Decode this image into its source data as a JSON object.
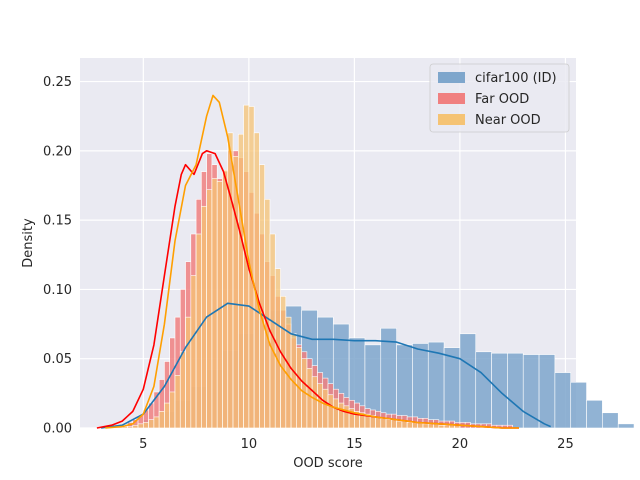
{
  "chart_data": {
    "type": "histogram-kde",
    "xlabel": "OOD score",
    "ylabel": "Density",
    "xlim": [
      2.0,
      25.5
    ],
    "ylim": [
      0,
      0.267
    ],
    "xticks": [
      5,
      10,
      15,
      20,
      25
    ],
    "yticks": [
      0.0,
      0.05,
      0.1,
      0.15,
      0.2,
      0.25
    ],
    "ytick_labels": [
      "0.00",
      "0.05",
      "0.10",
      "0.15",
      "0.20",
      "0.25"
    ],
    "grid": true,
    "legend_position": "top-right",
    "series": [
      {
        "name": "cifar100 (ID)",
        "color": "#1f77b4",
        "bar_color": "#7ea6cc",
        "bin_start": 3.5,
        "bin_width": 0.75,
        "hist": [
          0.001,
          0.003,
          0.006,
          0.012,
          0.02,
          0.03,
          0.042,
          0.056,
          0.068,
          0.078,
          0.085,
          0.088,
          0.085,
          0.08,
          0.075,
          0.065,
          0.06,
          0.072,
          0.06,
          0.061,
          0.062,
          0.058,
          0.068,
          0.055,
          0.054,
          0.054,
          0.053,
          0.053,
          0.04,
          0.033,
          0.02,
          0.011,
          0.003
        ],
        "kde_x": [
          3.0,
          4.0,
          5.0,
          6.0,
          7.0,
          8.0,
          9.0,
          10.0,
          11.0,
          12.0,
          13.0,
          14.0,
          15.0,
          16.0,
          17.0,
          18.0,
          19.0,
          20.0,
          21.0,
          22.0,
          23.0,
          24.0,
          24.3
        ],
        "kde_y": [
          0.0,
          0.002,
          0.01,
          0.03,
          0.058,
          0.08,
          0.09,
          0.088,
          0.078,
          0.068,
          0.064,
          0.064,
          0.063,
          0.063,
          0.062,
          0.057,
          0.054,
          0.05,
          0.04,
          0.025,
          0.012,
          0.003,
          0.001
        ]
      },
      {
        "name": "Far OOD",
        "color": "#ff0000",
        "bar_color": "#f08080",
        "bin_start": 3.5,
        "bin_width": 0.25,
        "hist": [
          0.001,
          0.002,
          0.002,
          0.004,
          0.006,
          0.009,
          0.013,
          0.018,
          0.026,
          0.035,
          0.048,
          0.065,
          0.08,
          0.1,
          0.12,
          0.14,
          0.165,
          0.185,
          0.198,
          0.19,
          0.18,
          0.185,
          0.2,
          0.2,
          0.195,
          0.185,
          0.17,
          0.155,
          0.14,
          0.12,
          0.11,
          0.095,
          0.085,
          0.075,
          0.065,
          0.06,
          0.055,
          0.05,
          0.045,
          0.04,
          0.036,
          0.032,
          0.028,
          0.025,
          0.022,
          0.02,
          0.018,
          0.016,
          0.014,
          0.013,
          0.012,
          0.011,
          0.01,
          0.01,
          0.009,
          0.009,
          0.008,
          0.008,
          0.007,
          0.007,
          0.006,
          0.006,
          0.005,
          0.005,
          0.005,
          0.004,
          0.004,
          0.004,
          0.003,
          0.003,
          0.003,
          0.003,
          0.002,
          0.002,
          0.002,
          0.002
        ],
        "kde_x": [
          2.8,
          3.5,
          4.0,
          4.5,
          5.0,
          5.5,
          6.0,
          6.5,
          6.8,
          7.0,
          7.4,
          7.8,
          8.0,
          8.4,
          8.8,
          9.2,
          9.6,
          10.0,
          10.5,
          11.0,
          11.5,
          12.0,
          12.5,
          13.0,
          13.5,
          14.0,
          14.5,
          15.0,
          16.0,
          17.0,
          18.0,
          19.0,
          20.0,
          21.0,
          22.0,
          22.8
        ],
        "kde_y": [
          0.0,
          0.002,
          0.005,
          0.012,
          0.028,
          0.06,
          0.11,
          0.16,
          0.183,
          0.19,
          0.183,
          0.198,
          0.2,
          0.198,
          0.185,
          0.163,
          0.14,
          0.115,
          0.09,
          0.07,
          0.055,
          0.043,
          0.034,
          0.027,
          0.02,
          0.015,
          0.012,
          0.01,
          0.008,
          0.006,
          0.004,
          0.003,
          0.002,
          0.001,
          0.0,
          0.0
        ]
      },
      {
        "name": "Near OOD",
        "color": "#ff9f00",
        "bar_color": "#f5c374",
        "bin_start": 3.5,
        "bin_width": 0.25,
        "hist": [
          0.0,
          0.0,
          0.001,
          0.001,
          0.002,
          0.003,
          0.004,
          0.006,
          0.008,
          0.012,
          0.018,
          0.026,
          0.038,
          0.055,
          0.08,
          0.11,
          0.14,
          0.16,
          0.172,
          0.18,
          0.178,
          0.186,
          0.213,
          0.196,
          0.212,
          0.233,
          0.232,
          0.213,
          0.19,
          0.165,
          0.14,
          0.115,
          0.095,
          0.08,
          0.068,
          0.058,
          0.05,
          0.043,
          0.037,
          0.032,
          0.028,
          0.024,
          0.021,
          0.018,
          0.016,
          0.014,
          0.012,
          0.011,
          0.01,
          0.009,
          0.008,
          0.007,
          0.006,
          0.006,
          0.005,
          0.005,
          0.004,
          0.004,
          0.004,
          0.003,
          0.003,
          0.003,
          0.002,
          0.002,
          0.002,
          0.002
        ],
        "kde_x": [
          3.2,
          4.0,
          4.5,
          5.0,
          5.5,
          6.0,
          6.5,
          7.0,
          7.5,
          8.0,
          8.3,
          8.6,
          9.0,
          9.5,
          10.0,
          10.5,
          11.0,
          11.5,
          12.0,
          12.5,
          13.0,
          13.5,
          14.0,
          15.0,
          16.0,
          17.0,
          18.0,
          19.0,
          20.0,
          21.0,
          22.0,
          22.8
        ],
        "kde_y": [
          0.0,
          0.001,
          0.003,
          0.01,
          0.03,
          0.075,
          0.135,
          0.175,
          0.19,
          0.225,
          0.24,
          0.235,
          0.21,
          0.165,
          0.12,
          0.085,
          0.06,
          0.045,
          0.035,
          0.027,
          0.022,
          0.018,
          0.015,
          0.011,
          0.008,
          0.006,
          0.004,
          0.003,
          0.002,
          0.001,
          0.0,
          0.0
        ]
      }
    ]
  }
}
